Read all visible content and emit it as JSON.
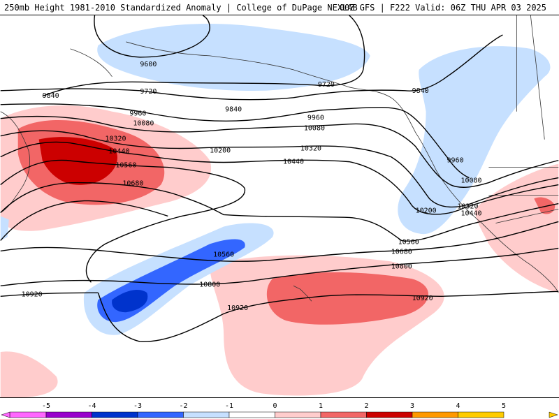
{
  "header": {
    "title_left": "250mb Height 1981-2010 Standardized Anomaly | College of DuPage NEXLAB",
    "title_right": "00Z GFS | F222 Valid: 06Z THU APR 03 2025"
  },
  "map": {
    "projection": "North Pacific",
    "contour_field": "250mb geopotential height (m)",
    "contour_labels": [
      "9600",
      "9720",
      "9720",
      "9840",
      "9840",
      "9840",
      "9960",
      "9960",
      "9960",
      "10080",
      "10080",
      "10080",
      "10200",
      "10200",
      "10320",
      "10320",
      "10320",
      "10440",
      "10440",
      "10440",
      "10560",
      "10560",
      "10560",
      "10680",
      "10680",
      "10800",
      "10800",
      "10920",
      "10920",
      "10920"
    ],
    "anomaly_field": "standardized anomaly"
  },
  "colorbar": {
    "ticks": [
      "-5",
      "-4",
      "-3",
      "-2",
      "-1",
      "0",
      "1",
      "2",
      "3",
      "4",
      "5"
    ],
    "colors": [
      "#ff66ff",
      "#9900cc",
      "#0033cc",
      "#3366ff",
      "#c6e0ff",
      "#ffffff",
      "#ffcccc",
      "#f26666",
      "#cc0000",
      "#ff9900",
      "#ffcc00"
    ],
    "units": "standard deviations"
  }
}
